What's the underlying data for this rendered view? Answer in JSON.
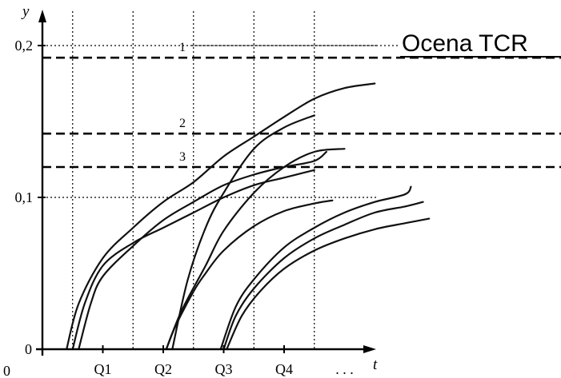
{
  "chart_data": {
    "type": "line",
    "title": "Ocena TCR",
    "xlabel": "t",
    "ylabel": "y",
    "origin_label": "0",
    "y_ticks": [
      {
        "value": 0,
        "label": "0"
      },
      {
        "value": 0.1,
        "label": "0,1"
      },
      {
        "value": 0.2,
        "label": "0,2"
      }
    ],
    "x_tick_labels": [
      "Q1",
      "Q2",
      "Q3",
      "Q4",
      ". . ."
    ],
    "x_tick_values": [
      1,
      2,
      3,
      4,
      5
    ],
    "x_grid_values": [
      0.5,
      1.5,
      2.5,
      3.5,
      4.5
    ],
    "xlim": [
      -0.5,
      5.5
    ],
    "ylim": [
      0,
      0.21
    ],
    "grid": "dotted",
    "thresholds": [
      {
        "label": "1",
        "value": 0.192
      },
      {
        "label": "2",
        "value": 0.142
      },
      {
        "label": "3",
        "value": 0.12
      }
    ],
    "series": [
      {
        "points": [
          [
            0.4,
            0
          ],
          [
            0.6,
            0.03
          ],
          [
            1.0,
            0.06
          ],
          [
            1.5,
            0.08
          ],
          [
            2.0,
            0.097
          ],
          [
            2.5,
            0.11
          ],
          [
            3.0,
            0.127
          ],
          [
            3.5,
            0.14
          ],
          [
            4.0,
            0.153
          ],
          [
            4.5,
            0.165
          ],
          [
            5.0,
            0.172
          ],
          [
            5.5,
            0.175
          ]
        ]
      },
      {
        "points": [
          [
            0.5,
            0
          ],
          [
            0.7,
            0.03
          ],
          [
            1.0,
            0.055
          ],
          [
            1.5,
            0.07
          ],
          [
            2.0,
            0.08
          ],
          [
            2.5,
            0.09
          ],
          [
            3.0,
            0.1
          ],
          [
            3.5,
            0.108
          ],
          [
            4.0,
            0.113
          ],
          [
            4.5,
            0.118
          ]
        ]
      },
      {
        "points": [
          [
            0.6,
            0
          ],
          [
            0.8,
            0.03
          ],
          [
            1.0,
            0.048
          ],
          [
            1.5,
            0.068
          ],
          [
            2.0,
            0.085
          ],
          [
            2.5,
            0.097
          ],
          [
            3.0,
            0.108
          ],
          [
            3.5,
            0.115
          ],
          [
            4.0,
            0.12
          ],
          [
            4.5,
            0.124
          ],
          [
            4.7,
            0.13
          ]
        ]
      },
      {
        "points": [
          [
            2.05,
            0
          ],
          [
            2.2,
            0.015
          ],
          [
            2.5,
            0.038
          ],
          [
            2.7,
            0.05
          ],
          [
            3.0,
            0.065
          ],
          [
            3.5,
            0.081
          ],
          [
            4.0,
            0.091
          ],
          [
            4.5,
            0.096
          ],
          [
            4.8,
            0.098
          ]
        ]
      },
      {
        "points": [
          [
            2.15,
            0
          ],
          [
            2.4,
            0.045
          ],
          [
            2.7,
            0.08
          ],
          [
            3.0,
            0.103
          ],
          [
            3.5,
            0.132
          ],
          [
            4.0,
            0.146
          ],
          [
            4.5,
            0.154
          ]
        ]
      },
      {
        "points": [
          [
            2.05,
            0
          ],
          [
            2.3,
            0.025
          ],
          [
            2.7,
            0.055
          ],
          [
            3.0,
            0.078
          ],
          [
            3.5,
            0.103
          ],
          [
            4.0,
            0.12
          ],
          [
            4.5,
            0.13
          ],
          [
            5.0,
            0.132
          ]
        ]
      },
      {
        "points": [
          [
            2.95,
            0
          ],
          [
            3.2,
            0.028
          ],
          [
            3.5,
            0.046
          ],
          [
            4.0,
            0.067
          ],
          [
            4.5,
            0.08
          ],
          [
            5.0,
            0.09
          ],
          [
            5.5,
            0.097
          ],
          [
            6.0,
            0.102
          ],
          [
            6.1,
            0.107
          ]
        ]
      },
      {
        "points": [
          [
            3.0,
            0
          ],
          [
            3.2,
            0.022
          ],
          [
            3.5,
            0.04
          ],
          [
            4.0,
            0.06
          ],
          [
            4.5,
            0.073
          ],
          [
            5.0,
            0.082
          ],
          [
            5.5,
            0.09
          ],
          [
            6.0,
            0.094
          ],
          [
            6.3,
            0.097
          ]
        ]
      },
      {
        "points": [
          [
            3.05,
            0
          ],
          [
            3.3,
            0.022
          ],
          [
            3.6,
            0.038
          ],
          [
            4.0,
            0.053
          ],
          [
            4.5,
            0.065
          ],
          [
            5.0,
            0.073
          ],
          [
            5.5,
            0.079
          ],
          [
            6.0,
            0.083
          ],
          [
            6.4,
            0.086
          ]
        ]
      }
    ]
  }
}
